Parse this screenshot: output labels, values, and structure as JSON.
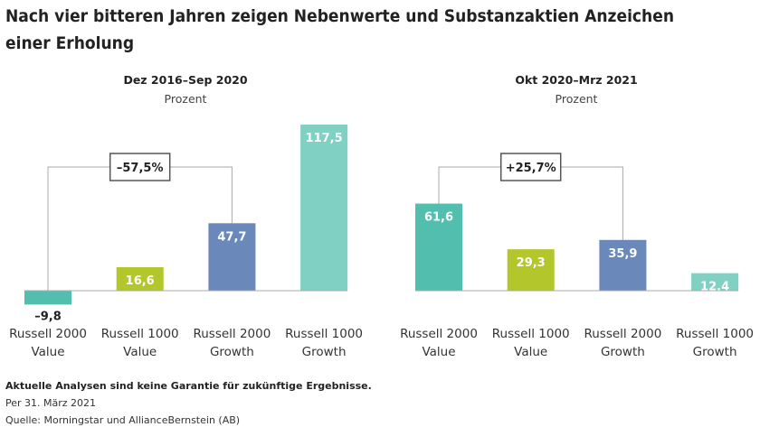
{
  "title_line1": "Nach vier bitteren Jahren zeigen Nebenwerte und Substanzaktien Anzeichen",
  "title_line2": "einer Erholung",
  "colors": {
    "Russell 2000 Value": "#52bfae",
    "Russell 1000 Value": "#b3c62b",
    "Russell 2000 Growth": "#6a88b9",
    "Russell 1000 Growth": "#80d0c4"
  },
  "chart_data": [
    {
      "type": "bar",
      "title": "Dez 2016–Sep 2020",
      "ylabel": "Prozent",
      "categories": [
        [
          "Russell 2000",
          "Value"
        ],
        [
          "Russell 1000",
          "Value"
        ],
        [
          "Russell 2000",
          "Growth"
        ],
        [
          "Russell 1000",
          "Growth"
        ]
      ],
      "values": [
        -9.8,
        16.6,
        47.7,
        117.5
      ],
      "labels": [
        "–9,8",
        "16,6",
        "47,7",
        "117,5"
      ],
      "annotation": {
        "text": "–57,5%",
        "from": 0,
        "to": 2
      }
    },
    {
      "type": "bar",
      "title": "Okt 2020–Mrz 2021",
      "ylabel": "Prozent",
      "categories": [
        [
          "Russell 2000",
          "Value"
        ],
        [
          "Russell 1000",
          "Value"
        ],
        [
          "Russell 2000",
          "Growth"
        ],
        [
          "Russell 1000",
          "Growth"
        ]
      ],
      "values": [
        61.6,
        29.3,
        35.9,
        12.4
      ],
      "labels": [
        "61,6",
        "29,3",
        "35,9",
        "12,4"
      ],
      "annotation": {
        "text": "+25,7%",
        "from": 0,
        "to": 2
      }
    }
  ],
  "footer": {
    "disclaimer": "Aktuelle Analysen sind keine Garantie für zukünftige Ergebnisse.",
    "date": "Per 31. März 2021",
    "source": "Quelle: Morningstar und AllianceBernstein (AB)"
  }
}
